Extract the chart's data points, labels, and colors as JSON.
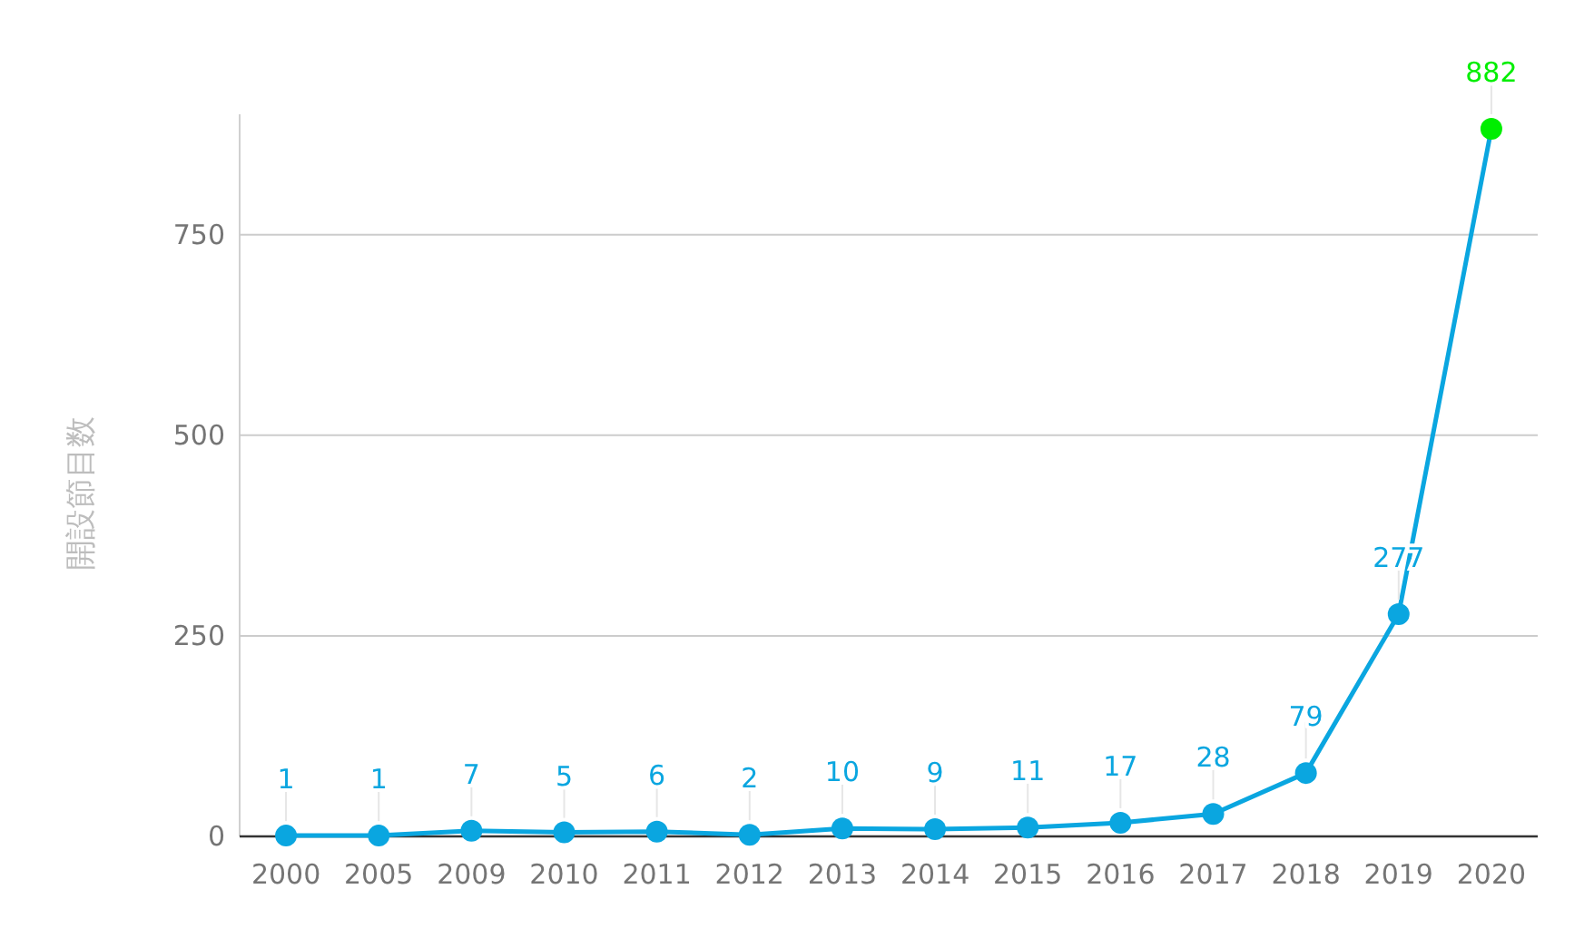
{
  "chart_data": {
    "type": "line",
    "ylabel": "開設節目数",
    "categories": [
      "2000",
      "2005",
      "2009",
      "2010",
      "2011",
      "2012",
      "2013",
      "2014",
      "2015",
      "2016",
      "2017",
      "2018",
      "2019",
      "2020"
    ],
    "series": [
      {
        "color": "#0aa6e0",
        "colors": [
          "#0aa6e0",
          "#0aa6e0",
          "#0aa6e0",
          "#0aa6e0",
          "#0aa6e0",
          "#0aa6e0",
          "#0aa6e0",
          "#0aa6e0",
          "#0aa6e0",
          "#0aa6e0",
          "#0aa6e0",
          "#0aa6e0",
          "#0aa6e0",
          "#00ee00"
        ],
        "values": [
          1,
          1,
          7,
          5,
          6,
          2,
          10,
          9,
          11,
          17,
          28,
          79,
          277,
          882
        ]
      }
    ],
    "ylim": [
      0,
      900
    ],
    "yticks": [
      0,
      250,
      500,
      750
    ],
    "grid": "y",
    "marker": "circle",
    "line_style": "solid",
    "data_labels": true
  }
}
